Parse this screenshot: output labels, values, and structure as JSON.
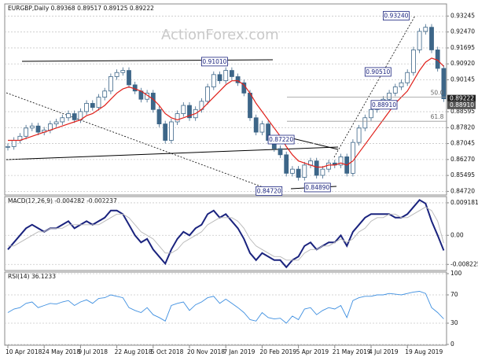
{
  "chart_data": [
    {
      "type": "candlestick",
      "title": "EURGBP,Daily  0.89368 0.89517 0.89125 0.89222",
      "watermark": "ActionForex.com",
      "categories": [
        "10 Apr 2018",
        null,
        null,
        null,
        null,
        null,
        "24 May 2018",
        null,
        null,
        null,
        null,
        null,
        "9 Jul 2018",
        null,
        null,
        null,
        null,
        null,
        "22 Aug 2018",
        null,
        null,
        null,
        null,
        null,
        "5 Oct 2018",
        null,
        null,
        null,
        null,
        null,
        "20 Nov 2018",
        null,
        null,
        null,
        null,
        null,
        "7 Jan 2019",
        null,
        null,
        null,
        null,
        null,
        "20 Feb 2019",
        null,
        null,
        null,
        null,
        null,
        "5 Apr 2019",
        null,
        null,
        null,
        null,
        null,
        "21 May 2019",
        null,
        null,
        null,
        null,
        null,
        "4 Jul 2019",
        null,
        null,
        null,
        null,
        null,
        "19 Aug 2019",
        null,
        null,
        null,
        null,
        null,
        null
      ],
      "series": [
        {
          "color": "#3d6688",
          "values": [
            0.869,
            0.872,
            0.874,
            0.878,
            0.879,
            0.876,
            0.877,
            0.88,
            0.881,
            0.883,
            0.885,
            0.882,
            0.886,
            0.89,
            0.888,
            0.893,
            0.896,
            0.903,
            0.905,
            0.906,
            0.899,
            0.896,
            0.892,
            0.895,
            0.887,
            0.88,
            0.872,
            0.881,
            0.885,
            0.889,
            0.883,
            0.887,
            0.891,
            0.898,
            0.904,
            0.901,
            0.906,
            0.903,
            0.9,
            0.895,
            0.883,
            0.876,
            0.88,
            0.872,
            0.868,
            0.865,
            0.856,
            0.858,
            0.854,
            0.86,
            0.862,
            0.855,
            0.858,
            0.861,
            0.86,
            0.864,
            0.856,
            0.871,
            0.878,
            0.883,
            0.887,
            0.89,
            0.892,
            0.895,
            0.898,
            0.9,
            0.905,
            0.916,
            0.925,
            0.927,
            0.916,
            0.907,
            0.89222
          ]
        },
        {
          "color": "#e0201a",
          "values": [
            0.872,
            0.872,
            0.872,
            0.873,
            0.874,
            0.875,
            0.876,
            0.877,
            0.878,
            0.879,
            0.88,
            0.881,
            0.882,
            0.884,
            0.885,
            0.887,
            0.889,
            0.892,
            0.895,
            0.897,
            0.898,
            0.897,
            0.896,
            0.894,
            0.892,
            0.889,
            0.885,
            0.883,
            0.882,
            0.883,
            0.884,
            0.885,
            0.887,
            0.89,
            0.893,
            0.896,
            0.899,
            0.901,
            0.901,
            0.899,
            0.895,
            0.89,
            0.886,
            0.882,
            0.878,
            0.874,
            0.869,
            0.865,
            0.862,
            0.861,
            0.86,
            0.859,
            0.859,
            0.86,
            0.86,
            0.861,
            0.86,
            0.862,
            0.866,
            0.87,
            0.874,
            0.878,
            0.882,
            0.886,
            0.89,
            0.893,
            0.896,
            0.901,
            0.906,
            0.91,
            0.912,
            0.911,
            0.908
          ]
        }
      ],
      "ylim": [
        0.8462,
        0.9372
      ],
      "yticks": [
        {
          "value": 0.93245,
          "label": "0.93245"
        },
        {
          "value": 0.9247,
          "label": "0.92470"
        },
        {
          "value": 0.91695,
          "label": "0.91695"
        },
        {
          "value": 0.9092,
          "label": "0.90920"
        },
        {
          "value": 0.90145,
          "label": "0.90145"
        },
        {
          "value": 0.88595,
          "label": "0.88595"
        },
        {
          "value": 0.8782,
          "label": "0.87820"
        },
        {
          "value": 0.87045,
          "label": "0.87045"
        },
        {
          "value": 0.8627,
          "label": "0.86270"
        },
        {
          "value": 0.85495,
          "label": "0.85495"
        },
        {
          "value": 0.8472,
          "label": "0.84720"
        }
      ],
      "price_labels": [
        0.89222,
        {
          "value": 0.8891,
          "label": "0.88910"
        }
      ],
      "annotations": [
        {
          "value": 0.9101,
          "label": "0.91010",
          "index": 32
        },
        {
          "value": 0.9051,
          "label": "0.90510",
          "index": 59
        },
        {
          "value": 0.9324,
          "label": "0.93240",
          "index": 62
        },
        {
          "value": 0.8891,
          "label": "0.88910",
          "index": 60
        },
        {
          "value": 0.8722,
          "label": "0.87220",
          "index": 43
        },
        {
          "value": 0.8472,
          "label": "0.84720",
          "index": 41
        },
        {
          "value": 0.8489,
          "label": "0.84890",
          "index": 49
        }
      ],
      "levels": [
        {
          "text": "50.0",
          "price": 0.8931
        },
        {
          "text": "61.8",
          "price": 0.8813
        }
      ]
    },
    {
      "type": "line",
      "title": "MACD(12,26,9) -0.004282 -0.002237",
      "series": [
        {
          "color": "#1a237e",
          "values": [
            -0.004,
            -0.002,
            0.0,
            0.002,
            0.003,
            0.002,
            0.001,
            0.002,
            0.002,
            0.003,
            0.004,
            0.002,
            0.003,
            0.004,
            0.003,
            0.004,
            0.005,
            0.007,
            0.007,
            0.006,
            0.003,
            0.0,
            -0.002,
            -0.001,
            -0.004,
            -0.006,
            -0.008,
            -0.004,
            -0.001,
            0.001,
            0.0,
            0.002,
            0.003,
            0.006,
            0.007,
            0.005,
            0.006,
            0.004,
            0.002,
            -0.001,
            -0.005,
            -0.007,
            -0.005,
            -0.006,
            -0.007,
            -0.007,
            -0.009,
            -0.007,
            -0.006,
            -0.003,
            -0.002,
            -0.004,
            -0.003,
            -0.002,
            -0.002,
            0.0,
            -0.003,
            0.001,
            0.003,
            0.005,
            0.006,
            0.006,
            0.006,
            0.006,
            0.005,
            0.005,
            0.006,
            0.008,
            0.01,
            0.009,
            0.004,
            0.0,
            -0.004282
          ]
        },
        {
          "color": "#b8b8b8",
          "values": [
            -0.003,
            -0.003,
            -0.002,
            -0.001,
            0.0,
            0.001,
            0.001,
            0.002,
            0.002,
            0.002,
            0.003,
            0.003,
            0.003,
            0.003,
            0.003,
            0.003,
            0.004,
            0.005,
            0.006,
            0.006,
            0.005,
            0.003,
            0.001,
            0.0,
            -0.001,
            -0.003,
            -0.005,
            -0.005,
            -0.004,
            -0.002,
            -0.001,
            0.0,
            0.001,
            0.003,
            0.004,
            0.005,
            0.005,
            0.005,
            0.004,
            0.002,
            -0.001,
            -0.003,
            -0.004,
            -0.005,
            -0.006,
            -0.006,
            -0.007,
            -0.007,
            -0.007,
            -0.005,
            -0.004,
            -0.004,
            -0.003,
            -0.003,
            -0.002,
            -0.001,
            -0.002,
            -0.001,
            0.001,
            0.002,
            0.004,
            0.005,
            0.005,
            0.006,
            0.006,
            0.005,
            0.005,
            0.006,
            0.007,
            0.008,
            0.007,
            0.004,
            -0.002237
          ]
        }
      ],
      "ylim": [
        -0.0095,
        0.0105
      ],
      "yticks": [
        0.009181,
        {
          "value": 0,
          "label": "0.00"
        },
        -0.008225
      ]
    },
    {
      "type": "line",
      "title": "RSI(14) 36.1233",
      "series": [
        {
          "color": "#3e8fe0",
          "values": [
            45,
            50,
            52,
            58,
            60,
            52,
            55,
            58,
            57,
            60,
            62,
            55,
            60,
            63,
            58,
            65,
            66,
            70,
            68,
            66,
            52,
            48,
            45,
            52,
            42,
            38,
            33,
            55,
            58,
            60,
            48,
            56,
            60,
            66,
            68,
            58,
            64,
            58,
            52,
            45,
            35,
            33,
            45,
            38,
            36,
            37,
            30,
            40,
            35,
            50,
            52,
            42,
            48,
            52,
            50,
            55,
            38,
            62,
            66,
            68,
            68,
            70,
            70,
            72,
            71,
            70,
            72,
            74,
            75,
            72,
            52,
            45,
            36.1233
          ]
        }
      ],
      "ylim": [
        0,
        100
      ],
      "yticks": [
        100,
        70,
        30,
        0
      ]
    }
  ]
}
